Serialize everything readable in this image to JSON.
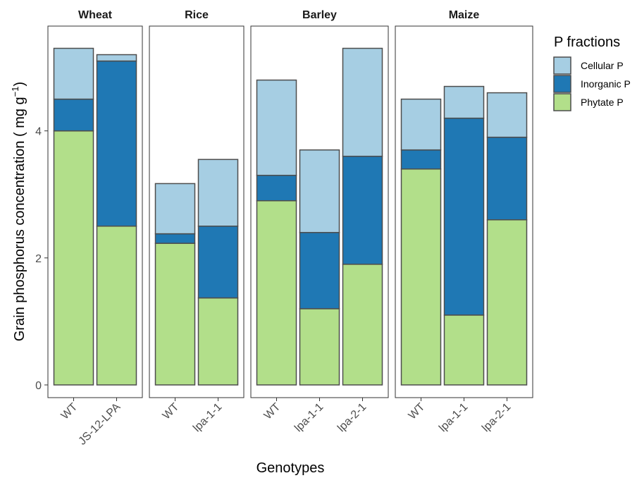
{
  "chart_data": {
    "type": "bar",
    "stacked": true,
    "faceted": true,
    "xlabel": "Genotypes",
    "ylabel": "Grain phosphorus concentration ( mg g",
    "ylabel_sup": "−1",
    "ylabel_tail": ")",
    "ylim": [
      -0.2,
      5.65
    ],
    "yticks": [
      "0",
      "2",
      "4"
    ],
    "ytick_values": [
      0,
      2,
      4
    ],
    "grid": false,
    "legend": {
      "title": "P fractions",
      "position": "right",
      "entries": [
        "Cellular P",
        "Inorganic P",
        "Phytate P"
      ]
    },
    "series_order_bottom_to_top": [
      "Phytate P",
      "Inorganic P",
      "Cellular P"
    ],
    "colors": {
      "Phytate P": "#b2df8a",
      "Inorganic P": "#1f78b4",
      "Cellular P": "#a6cee3",
      "bar_outline": "#4d4d4d",
      "panel_border": "#333333"
    },
    "facets": [
      {
        "name": "Wheat",
        "genotypes": [
          "WT",
          "JS-12-LPA"
        ],
        "phytate": [
          4.0,
          2.5
        ],
        "inorganic": [
          0.5,
          2.6
        ],
        "cellular": [
          0.8,
          0.1
        ]
      },
      {
        "name": "Rice",
        "genotypes": [
          "WT",
          "lpa-1-1"
        ],
        "phytate": [
          2.23,
          1.37
        ],
        "inorganic": [
          0.15,
          1.13
        ],
        "cellular": [
          0.79,
          1.05
        ]
      },
      {
        "name": "Barley",
        "genotypes": [
          "WT",
          "lpa-1-1",
          "lpa-2-1"
        ],
        "phytate": [
          2.9,
          1.2,
          1.9
        ],
        "inorganic": [
          0.4,
          1.2,
          1.7
        ],
        "cellular": [
          1.5,
          1.3,
          1.7
        ]
      },
      {
        "name": "Maize",
        "genotypes": [
          "WT",
          "lpa-1-1",
          "lpa-2-1"
        ],
        "phytate": [
          3.4,
          1.1,
          2.6
        ],
        "inorganic": [
          0.3,
          3.1,
          1.3
        ],
        "cellular": [
          0.8,
          0.5,
          0.7
        ]
      }
    ]
  }
}
